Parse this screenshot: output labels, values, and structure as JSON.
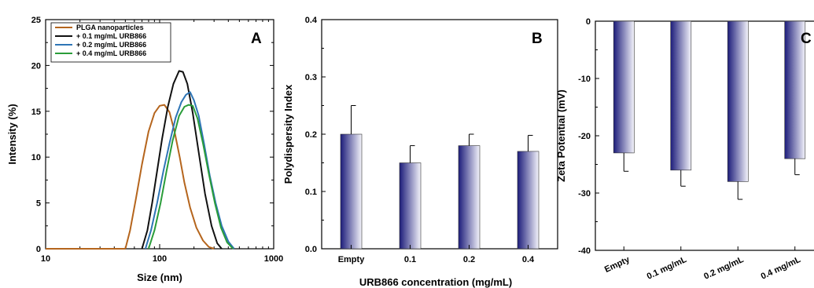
{
  "chart_data": [
    {
      "panel": "A",
      "type": "line",
      "xlabel": "Size (nm)",
      "ylabel": "Intensity (%)",
      "xscale": "log",
      "xlim": [
        10,
        1000
      ],
      "ylim": [
        0,
        25
      ],
      "x_ticks": [
        "10",
        "100",
        "1000"
      ],
      "y_ticks": [
        "0",
        "5",
        "10",
        "15",
        "20",
        "25"
      ],
      "legend_position": "top-left",
      "series": [
        {
          "name": "PLGA nanoparticles",
          "color": "#b5651d",
          "x": [
            50,
            55,
            62,
            70,
            80,
            90,
            100,
            110,
            122,
            135,
            150,
            165,
            185,
            210,
            240,
            270,
            300
          ],
          "values": [
            0,
            2.0,
            5.5,
            9.2,
            12.8,
            14.8,
            15.6,
            15.7,
            14.9,
            12.8,
            10.0,
            7.2,
            4.5,
            2.3,
            0.9,
            0.2,
            0
          ]
        },
        {
          "name": "+ 0.1 mg/mL URB866",
          "color": "#111111",
          "x": [
            70,
            78,
            86,
            95,
            105,
            118,
            132,
            148,
            160,
            175,
            195,
            220,
            250,
            285,
            320,
            350
          ],
          "values": [
            0,
            2.0,
            5.0,
            8.5,
            12.0,
            15.5,
            18.0,
            19.4,
            19.3,
            18.0,
            14.8,
            10.5,
            6.0,
            2.5,
            0.6,
            0
          ]
        },
        {
          "name": "+ 0.2 mg/mL URB866",
          "color": "#2e75b6",
          "x": [
            75,
            84,
            95,
            108,
            122,
            138,
            155,
            170,
            185,
            200,
            220,
            245,
            275,
            310,
            350,
            400,
            450
          ],
          "values": [
            0,
            2.0,
            5.0,
            8.5,
            11.5,
            14.3,
            16.0,
            16.8,
            17.1,
            16.2,
            14.5,
            11.5,
            8.0,
            5.0,
            2.5,
            0.8,
            0
          ]
        },
        {
          "name": "+ 0.4 mg/mL URB866",
          "color": "#2a9d3a",
          "x": [
            80,
            90,
            102,
            115,
            130,
            148,
            165,
            180,
            195,
            215,
            240,
            270,
            305,
            345,
            390,
            440
          ],
          "values": [
            0,
            2.0,
            5.0,
            8.5,
            11.8,
            14.5,
            15.5,
            15.7,
            15.6,
            14.2,
            11.5,
            8.2,
            5.0,
            2.3,
            0.7,
            0
          ]
        }
      ]
    },
    {
      "panel": "B",
      "type": "bar",
      "xlabel": "URB866 concentration (mg/mL)",
      "ylabel": "Polydispersity Index",
      "ylim": [
        0,
        0.4
      ],
      "y_ticks": [
        "0.0",
        "0.1",
        "0.2",
        "0.3",
        "0.4"
      ],
      "categories": [
        "Empty",
        "0.1",
        "0.2",
        "0.4"
      ],
      "values": [
        0.2,
        0.15,
        0.18,
        0.17
      ],
      "errors": [
        0.05,
        0.03,
        0.02,
        0.028
      ],
      "bar_color_dark": "#1c1c7a",
      "bar_color_light": "#f4f4fb"
    },
    {
      "panel": "C",
      "type": "bar",
      "xlabel": "",
      "ylabel": "Zeta Potential (mV)",
      "ylim": [
        -40,
        0
      ],
      "y_ticks": [
        "0",
        "-10",
        "-20",
        "-30",
        "-40"
      ],
      "categories": [
        "Empty",
        "0.1 mg/mL",
        "0.2 mg/mL",
        "0.4 mg/mL"
      ],
      "values": [
        -23,
        -26,
        -28,
        -24
      ],
      "errors": [
        3.2,
        2.8,
        3.1,
        2.8
      ],
      "bar_color_dark": "#1c1c7a",
      "bar_color_light": "#f4f4fb"
    }
  ]
}
